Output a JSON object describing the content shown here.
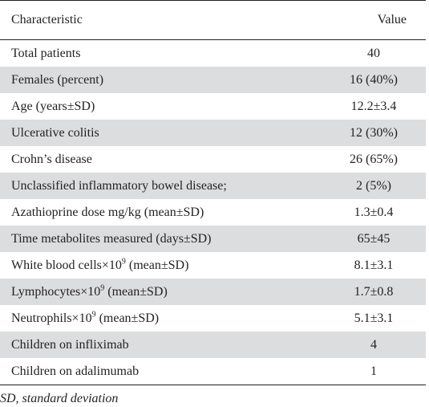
{
  "table": {
    "headers": {
      "characteristic": "Characteristic",
      "value": "Value"
    },
    "rows": [
      {
        "label": "Total patients",
        "value": "40"
      },
      {
        "label": "Females (percent)",
        "value": "16 (40%)"
      },
      {
        "label": "Age (years±SD)",
        "value": "12.2±3.4"
      },
      {
        "label": "Ulcerative colitis",
        "value": "12 (30%)"
      },
      {
        "label": "Crohn’s disease",
        "value": "26 (65%)"
      },
      {
        "label": "Unclassified inflammatory bowel disease;",
        "value": "2 (5%)"
      },
      {
        "label": "Azathioprine dose mg/kg (mean±SD)",
        "value": "1.3±0.4"
      },
      {
        "label": "Time metabolites measured (days±SD)",
        "value": "65±45"
      },
      {
        "label_pre": "White blood cells×10",
        "label_sup": "9",
        "label_post": " (mean±SD)",
        "value": "8.1±3.1"
      },
      {
        "label_pre": "Lymphocytes×10",
        "label_sup": "9",
        "label_post": " (mean±SD)",
        "value": "1.7±0.8"
      },
      {
        "label_pre": "Neutrophils×10",
        "label_sup": "9",
        "label_post": " (mean±SD)",
        "value": "5.1±3.1"
      },
      {
        "label": "Children on infliximab",
        "value": "4"
      },
      {
        "label": "Children on adalimumab",
        "value": "1"
      }
    ]
  },
  "footnote": "SD, standard deviation"
}
